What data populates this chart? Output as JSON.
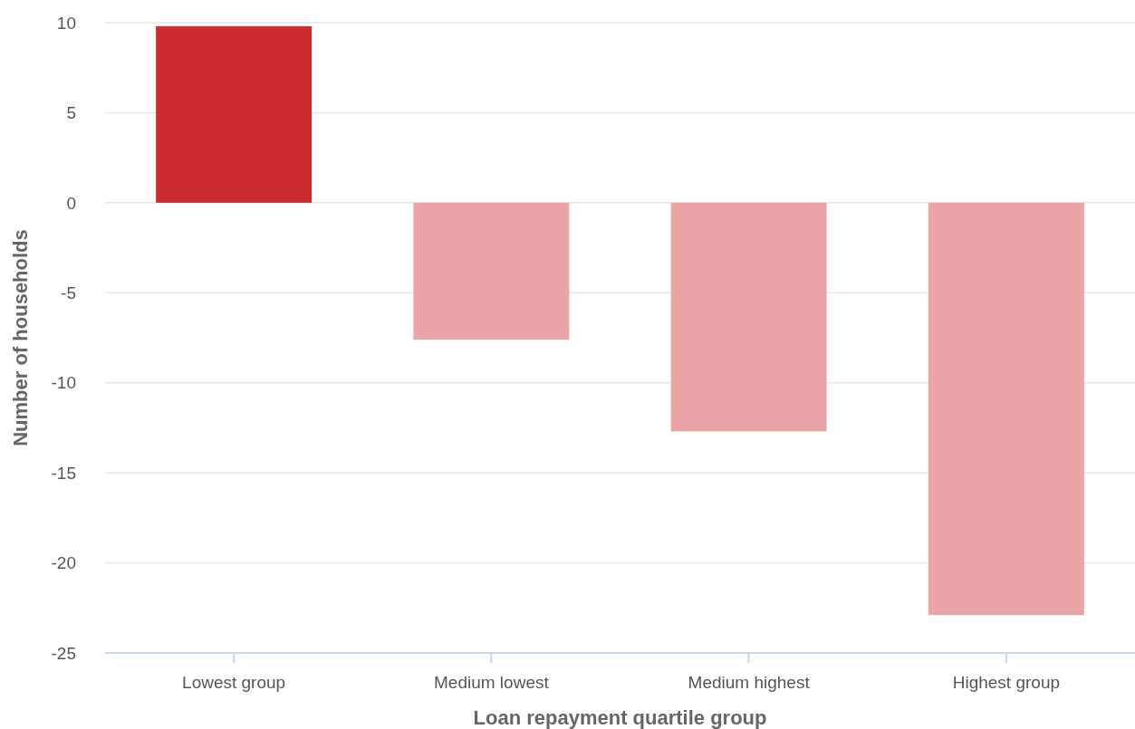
{
  "chart_data": {
    "type": "bar",
    "xlabel": "Loan repayment quartile group",
    "ylabel": "Number of households",
    "categories": [
      "Lowest group",
      "Medium lowest",
      "Medium highest",
      "Highest group"
    ],
    "values": [
      9.8,
      -7.6,
      -12.7,
      -22.9
    ],
    "colors": [
      "#cc2b2f",
      "#eba5a7",
      "#eba5a7",
      "#eba5a7"
    ],
    "ylim": [
      -25,
      10
    ],
    "yticks": [
      -25,
      -20,
      -15,
      -10,
      -5,
      0,
      5,
      10
    ],
    "grid": "y"
  }
}
